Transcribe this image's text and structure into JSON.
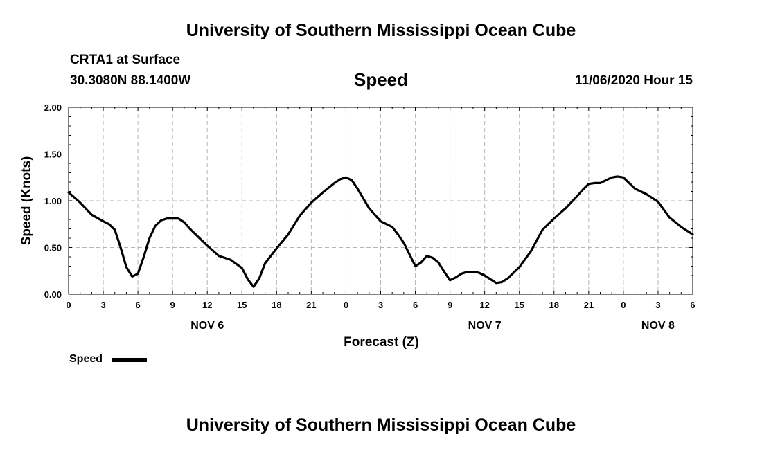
{
  "header": {
    "title": "University of Southern Mississippi Ocean Cube",
    "station": "CRTA1 at Surface",
    "location": "30.3080N 88.1400W",
    "variable": "Speed",
    "datetime": "11/06/2020 Hour 15"
  },
  "footer": {
    "title": "University of Southern Mississippi Ocean Cube"
  },
  "legend": {
    "label": "Speed"
  },
  "chart_data": {
    "type": "line",
    "title": "Speed",
    "xlabel": "Forecast (Z)",
    "ylabel": "Speed (Knots)",
    "ylim": [
      0,
      2
    ],
    "xlim": [
      0,
      54
    ],
    "grid": true,
    "x_ticks": [
      0,
      3,
      6,
      9,
      12,
      15,
      18,
      21,
      24,
      27,
      30,
      33,
      36,
      39,
      42,
      45,
      48,
      51,
      54
    ],
    "x_tick_labels": [
      "0",
      "3",
      "6",
      "9",
      "12",
      "15",
      "18",
      "21",
      "0",
      "3",
      "6",
      "9",
      "12",
      "15",
      "18",
      "21",
      "0",
      "3",
      "6"
    ],
    "y_ticks": [
      0,
      0.5,
      1,
      1.5,
      2
    ],
    "y_tick_labels": [
      "0.00",
      "0.50",
      "1.00",
      "1.50",
      "2.00"
    ],
    "day_labels": [
      {
        "x": 12,
        "label": "NOV 6"
      },
      {
        "x": 36,
        "label": "NOV 7"
      },
      {
        "x": 51,
        "label": "NOV 8"
      }
    ],
    "series": [
      {
        "name": "Speed",
        "color": "#000000",
        "x": [
          0,
          1,
          2,
          3,
          3.5,
          4,
          4.5,
          5,
          5.5,
          6,
          6.5,
          7,
          7.5,
          8,
          8.5,
          9,
          9.5,
          10,
          10.5,
          11,
          12,
          13,
          14,
          15,
          15.5,
          16,
          16.5,
          17,
          18,
          19,
          20,
          21,
          22,
          23,
          23.5,
          24,
          24.5,
          25,
          26,
          27,
          28,
          28.5,
          29,
          30,
          30.5,
          31,
          31.5,
          32,
          32.5,
          33,
          33.5,
          34,
          34.5,
          35,
          35.5,
          36,
          36.5,
          37,
          37.5,
          38,
          38.5,
          39,
          40,
          41,
          42,
          43,
          44,
          44.5,
          45,
          45.5,
          46,
          46.5,
          47,
          47.5,
          48,
          49,
          50,
          51,
          52,
          53,
          54
        ],
        "values": [
          1.09,
          0.98,
          0.85,
          0.78,
          0.75,
          0.69,
          0.5,
          0.29,
          0.19,
          0.22,
          0.4,
          0.6,
          0.73,
          0.79,
          0.81,
          0.81,
          0.81,
          0.77,
          0.7,
          0.64,
          0.52,
          0.41,
          0.37,
          0.28,
          0.16,
          0.08,
          0.17,
          0.33,
          0.49,
          0.64,
          0.84,
          0.98,
          1.09,
          1.19,
          1.23,
          1.25,
          1.22,
          1.13,
          0.92,
          0.78,
          0.72,
          0.64,
          0.55,
          0.3,
          0.34,
          0.41,
          0.39,
          0.34,
          0.24,
          0.15,
          0.18,
          0.22,
          0.24,
          0.24,
          0.23,
          0.2,
          0.16,
          0.12,
          0.13,
          0.17,
          0.23,
          0.29,
          0.46,
          0.69,
          0.81,
          0.92,
          1.05,
          1.12,
          1.18,
          1.19,
          1.19,
          1.22,
          1.25,
          1.26,
          1.25,
          1.13,
          1.07,
          0.99,
          0.82,
          0.72,
          0.64
        ]
      }
    ]
  }
}
